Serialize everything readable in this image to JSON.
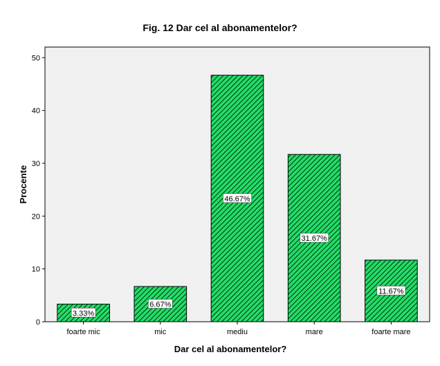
{
  "chart_data": {
    "type": "bar",
    "title": "Fig. 12   Dar cel al abonamentelor?",
    "xlabel": "Dar cel al abonamentelor?",
    "ylabel": "Procente",
    "categories": [
      "foarte mic",
      "mic",
      "mediu",
      "mare",
      "foarte mare"
    ],
    "values": [
      3.33,
      6.67,
      46.67,
      31.67,
      11.67
    ],
    "data_labels": [
      "3.33%",
      "6.67%",
      "46.67%",
      "31.67%",
      "11.67%"
    ],
    "ylim": [
      0,
      52
    ],
    "yticks": [
      0,
      10,
      20,
      30,
      40,
      50
    ],
    "grid": false,
    "bar_fill": "#22dd66",
    "bar_hatch": "#000000",
    "plot_background": "#f0f0f0"
  }
}
